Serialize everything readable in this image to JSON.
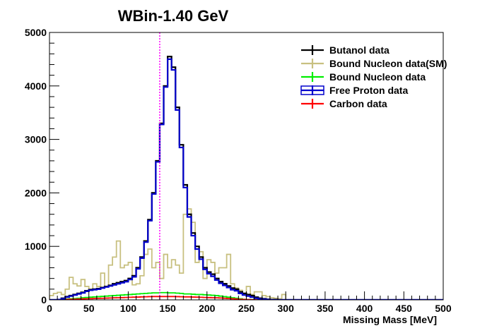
{
  "chart_data": {
    "type": "line",
    "step": true,
    "title": "WBin-1.40 GeV",
    "xlabel": "Missing Mass [MeV]",
    "ylabel": "",
    "xlim": [
      0,
      500
    ],
    "ylim": [
      0,
      5000
    ],
    "x_ticks": [
      0,
      50,
      100,
      150,
      200,
      250,
      300,
      350,
      400,
      450,
      500
    ],
    "y_ticks": [
      0,
      1000,
      2000,
      3000,
      4000,
      5000
    ],
    "bin_width": 5,
    "grid": false,
    "legend_position": "top-right",
    "marker_line": {
      "x": 140,
      "color": "#ff00ff",
      "style": "dotted"
    },
    "series": [
      {
        "name": "Butanol data",
        "color": "#000000",
        "values": [
          0,
          0,
          5,
          30,
          60,
          80,
          100,
          120,
          140,
          170,
          190,
          200,
          210,
          230,
          250,
          270,
          300,
          320,
          340,
          360,
          400,
          450,
          600,
          800,
          1100,
          1500,
          2000,
          2600,
          3300,
          4000,
          4550,
          4350,
          3600,
          2900,
          2150,
          1600,
          1250,
          1000,
          800,
          600,
          520,
          480,
          400,
          340,
          300,
          260,
          220,
          200,
          150,
          120,
          100,
          80,
          50,
          30,
          20,
          10,
          5,
          5,
          0,
          0
        ]
      },
      {
        "name": "Bound Nucleon data(SM)",
        "color": "#c8c080",
        "values": [
          80,
          120,
          140,
          100,
          200,
          420,
          300,
          260,
          380,
          250,
          200,
          300,
          250,
          500,
          250,
          650,
          800,
          1100,
          600,
          650,
          700,
          280,
          300,
          450,
          850,
          950,
          600,
          700,
          400,
          850,
          600,
          750,
          650,
          500,
          1600,
          1700,
          1450,
          700,
          900,
          400,
          750,
          700,
          500,
          600,
          600,
          850,
          300,
          220,
          180,
          100,
          250,
          100,
          150,
          150,
          80,
          60,
          40,
          30,
          20,
          100
        ]
      },
      {
        "name": "Bound Nucleon data",
        "color": "#00ee00",
        "values": [
          0,
          0,
          5,
          10,
          15,
          20,
          25,
          30,
          40,
          45,
          50,
          55,
          60,
          65,
          70,
          75,
          80,
          85,
          90,
          95,
          100,
          105,
          110,
          115,
          120,
          125,
          130,
          130,
          135,
          135,
          130,
          130,
          125,
          120,
          110,
          110,
          105,
          100,
          100,
          95,
          90,
          85,
          80,
          70,
          60,
          50,
          40,
          30,
          20,
          10,
          5,
          5,
          0,
          0,
          0,
          0,
          0,
          0,
          0,
          0
        ]
      },
      {
        "name": "Free Proton data",
        "color": "#0000cc",
        "values": [
          0,
          0,
          5,
          20,
          50,
          70,
          90,
          110,
          130,
          160,
          180,
          190,
          200,
          220,
          240,
          260,
          280,
          300,
          320,
          340,
          380,
          430,
          580,
          780,
          1080,
          1480,
          1980,
          2580,
          3280,
          3980,
          4500,
          4300,
          3550,
          2850,
          2100,
          1550,
          1200,
          950,
          760,
          570,
          490,
          440,
          370,
          310,
          270,
          230,
          190,
          170,
          120,
          90,
          70,
          50,
          30,
          15,
          10,
          5,
          0,
          0,
          0,
          0
        ]
      },
      {
        "name": "Carbon data",
        "color": "#ff0000",
        "values": [
          0,
          0,
          2,
          5,
          8,
          10,
          12,
          15,
          18,
          20,
          22,
          25,
          28,
          30,
          32,
          35,
          38,
          40,
          42,
          45,
          48,
          50,
          52,
          55,
          58,
          60,
          62,
          62,
          62,
          62,
          62,
          62,
          60,
          58,
          55,
          55,
          52,
          50,
          48,
          45,
          42,
          40,
          38,
          35,
          30,
          25,
          20,
          15,
          10,
          8,
          5,
          2,
          0,
          0,
          0,
          0,
          0,
          0,
          0,
          0
        ]
      }
    ]
  }
}
